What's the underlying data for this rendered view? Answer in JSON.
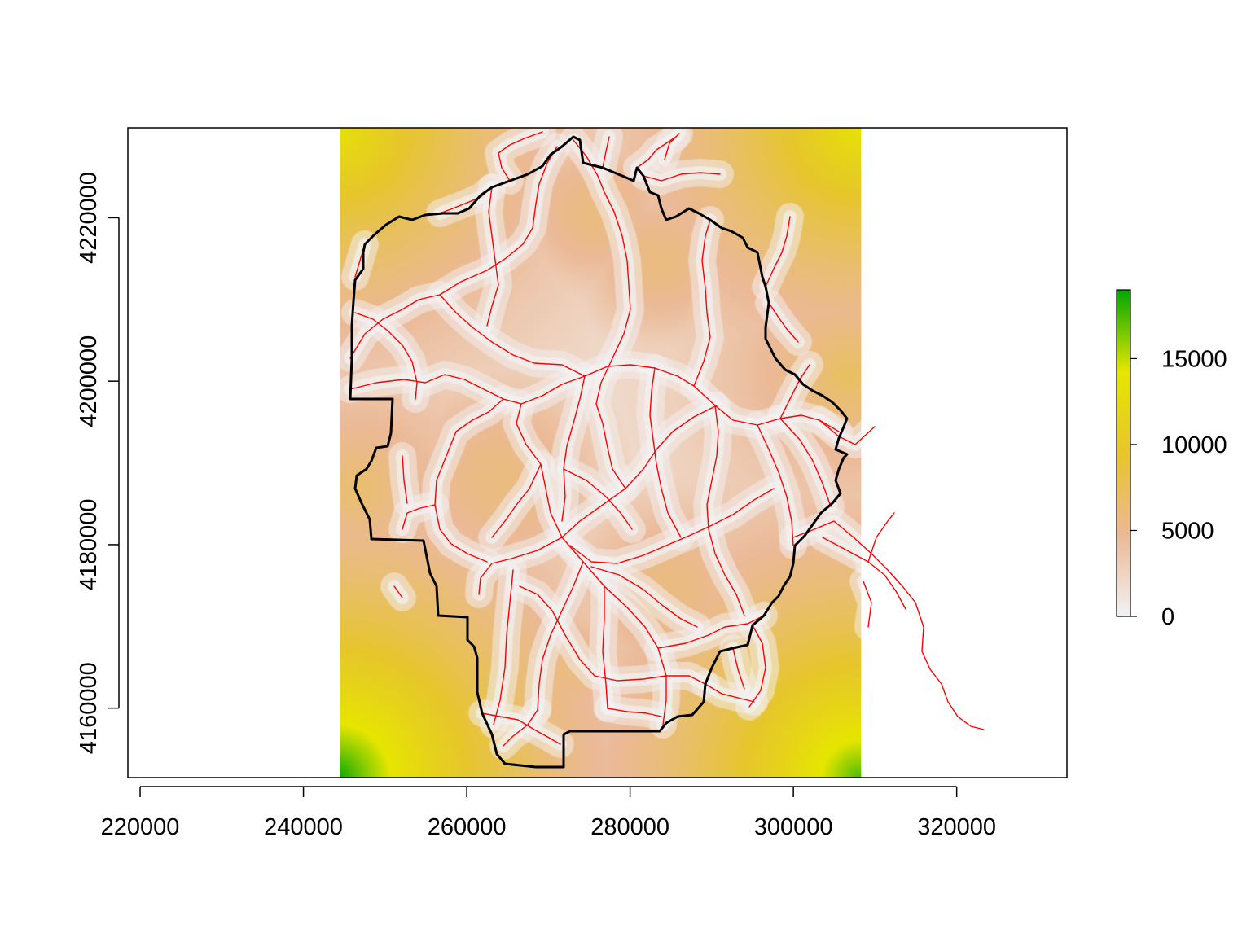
{
  "chart_data": {
    "type": "heatmap",
    "title": "",
    "xlabel": "",
    "ylabel": "",
    "xlim": [
      218500,
      333500
    ],
    "ylim": [
      4151500,
      4231000
    ],
    "x_ticks": [
      {
        "value": 220000,
        "label": "220000"
      },
      {
        "value": 240000,
        "label": "240000"
      },
      {
        "value": 260000,
        "label": "260000"
      },
      {
        "value": 280000,
        "label": "280000"
      },
      {
        "value": 300000,
        "label": "300000"
      },
      {
        "value": 320000,
        "label": "320000"
      }
    ],
    "y_ticks": [
      {
        "value": 4160000,
        "label": "4160000"
      },
      {
        "value": 4180000,
        "label": "4180000"
      },
      {
        "value": 4200000,
        "label": "4200000"
      },
      {
        "value": 4220000,
        "label": "4220000"
      }
    ],
    "raster_extent": {
      "xmin": 244500,
      "xmax": 308300,
      "ymin": 4151500,
      "ymax": 4231000
    },
    "colorbar": {
      "min": 0,
      "max": 19000,
      "ticks": [
        {
          "value": 0,
          "label": "0"
        },
        {
          "value": 5000,
          "label": "5000"
        },
        {
          "value": 10000,
          "label": "10000"
        },
        {
          "value": 15000,
          "label": "15000"
        }
      ],
      "colors": [
        "#f2f2f2",
        "#ebb996",
        "#e6c62b",
        "#e6e600",
        "#00a600"
      ]
    },
    "layers": [
      {
        "name": "distance raster",
        "color_scale": "terrain"
      },
      {
        "name": "boundary",
        "color": "#000000"
      },
      {
        "name": "roads",
        "color": "#ff0000"
      }
    ],
    "grid": false,
    "legend_position": "right"
  }
}
